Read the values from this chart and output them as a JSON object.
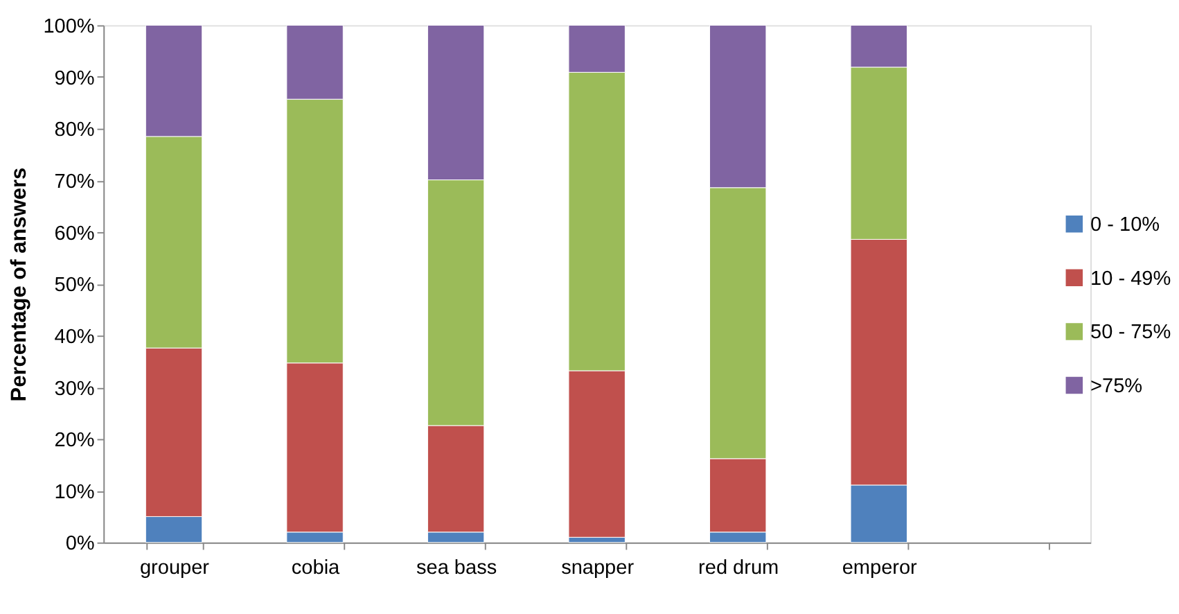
{
  "chart_data": {
    "type": "bar",
    "stacked": true,
    "ylabel": "Percentage of answers",
    "categories": [
      "grouper",
      "cobia",
      "sea bass",
      "snapper",
      "red drum",
      "emperor",
      null
    ],
    "series": [
      {
        "name": "0 - 10%",
        "color": "#4f81bd",
        "values": [
          5.0,
          2.0,
          2.0,
          1.0,
          2.0,
          11.1,
          null
        ]
      },
      {
        "name": "10 - 49%",
        "color": "#c0504d",
        "values": [
          32.6,
          32.7,
          20.6,
          32.2,
          14.2,
          47.5,
          null
        ]
      },
      {
        "name": "50 - 75%",
        "color": "#9bbb59",
        "values": [
          40.9,
          51.0,
          47.5,
          57.7,
          52.4,
          33.3,
          null
        ]
      },
      {
        "name": ">75%",
        "color": "#8064a2",
        "values": [
          21.5,
          14.3,
          29.9,
          9.1,
          31.4,
          8.1,
          null
        ]
      }
    ],
    "ylim": [
      0,
      100
    ],
    "yticks": [
      {
        "value": 0,
        "label": "0%"
      },
      {
        "value": 10,
        "label": "10%"
      },
      {
        "value": 20,
        "label": "20%"
      },
      {
        "value": 30,
        "label": "30%"
      },
      {
        "value": 40,
        "label": "40%"
      },
      {
        "value": 50,
        "label": "50%"
      },
      {
        "value": 60,
        "label": "60%"
      },
      {
        "value": 70,
        "label": "70%"
      },
      {
        "value": 80,
        "label": "80%"
      },
      {
        "value": 90,
        "label": "90%"
      },
      {
        "value": 100,
        "label": "100%"
      }
    ],
    "grid": false,
    "legend": "right"
  }
}
